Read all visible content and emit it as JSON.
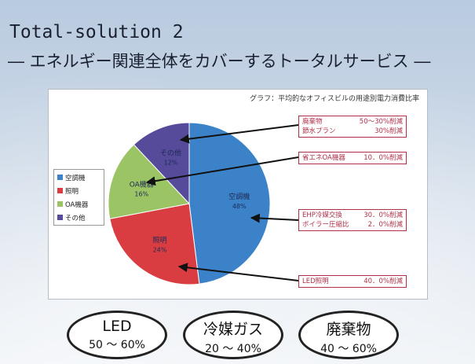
{
  "title_line1": "Total-solution 2",
  "title_line2": "― エネルギー関連全体をカバーするトータルサービス ―",
  "chart_data": {
    "type": "pie",
    "caption": "グラフ：平均的なオフィスビルの用途別電力消費比率",
    "slices": [
      {
        "label": "空調機",
        "value": 48,
        "pct_text": "48%",
        "color": "#3b82c9"
      },
      {
        "label": "照明",
        "value": 24,
        "pct_text": "24%",
        "color": "#d93d42"
      },
      {
        "label": "OA機器",
        "value": 16,
        "pct_text": "16%",
        "color": "#9bc465"
      },
      {
        "label": "その他",
        "value": 12,
        "pct_text": "12%",
        "color": "#564a9a"
      }
    ],
    "legend": [
      "空調機",
      "照明",
      "OA機器",
      "その他"
    ],
    "legend_position": "left"
  },
  "callouts": {
    "waste": {
      "l1": "廃棄物",
      "v1": "50～30%削減",
      "l2": "節水プラン",
      "v2": "30%削減"
    },
    "oa": {
      "l1": "省エネOA機器",
      "v1": "10．0%削減"
    },
    "hvac": {
      "l1": "EHP冷媒交換",
      "v1": "30．0%削減",
      "l2": "ボイラー圧縮比",
      "v2": "2．0%削減"
    },
    "led": {
      "l1": "LED照明",
      "v1": "40．0%削減"
    }
  },
  "ovals": [
    {
      "title": "LED",
      "range": "50 ～ 60%"
    },
    {
      "title": "冷媒ガス",
      "range": "20 ～ 40%"
    },
    {
      "title": "廃棄物",
      "range": "40 ～ 60%"
    }
  ]
}
